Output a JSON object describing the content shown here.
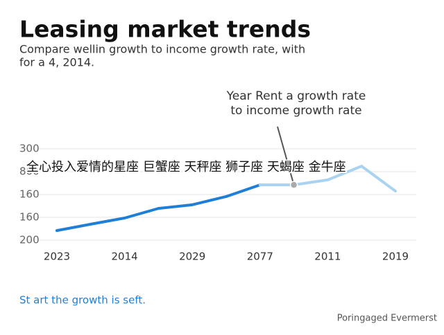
{
  "chart_data": {
    "type": "line",
    "title": "Leasing market trends",
    "subtitle": [
      "Compare wellin growth to income growth rate, with",
      "for a 4, 2014."
    ],
    "annotation": [
      "Year Rent a growth rate",
      "to income growth rate"
    ],
    "overlay_text": "全心投入爱情的星座 巨蟹座 天秤座 狮子座 天蝎座 金牛座",
    "footnote": "St art the growth is seft.",
    "source": "Poringaged Evermerst",
    "categories": [
      "2023",
      null,
      "2014",
      null,
      "2029",
      null,
      "2077",
      null,
      "2011",
      null,
      "2019"
    ],
    "values": [
      0.42,
      0.7,
      0.97,
      1.39,
      1.55,
      1.91,
      2.42,
      2.42,
      2.64,
      3.24,
      2.15
    ],
    "color": "#1f7fd6",
    "segment_colors": [
      "#1f7fd6",
      "#1f7fd6",
      "#1f7fd6",
      "#1f7fd6",
      "#1f7fd6",
      "#1f7fd6",
      "#a9d3f0",
      "#a9d3f0",
      "#a9d3f0",
      "#a9d3f0"
    ],
    "ylim": [
      0,
      4
    ],
    "yticks": [
      {
        "value": 4,
        "label": "300"
      },
      {
        "value": 3,
        "label": "800"
      },
      {
        "value": 2,
        "label": "160"
      },
      {
        "value": 1,
        "label": "160"
      },
      {
        "value": 0,
        "label": "200"
      }
    ],
    "annotation_point": 7,
    "grid": true
  }
}
